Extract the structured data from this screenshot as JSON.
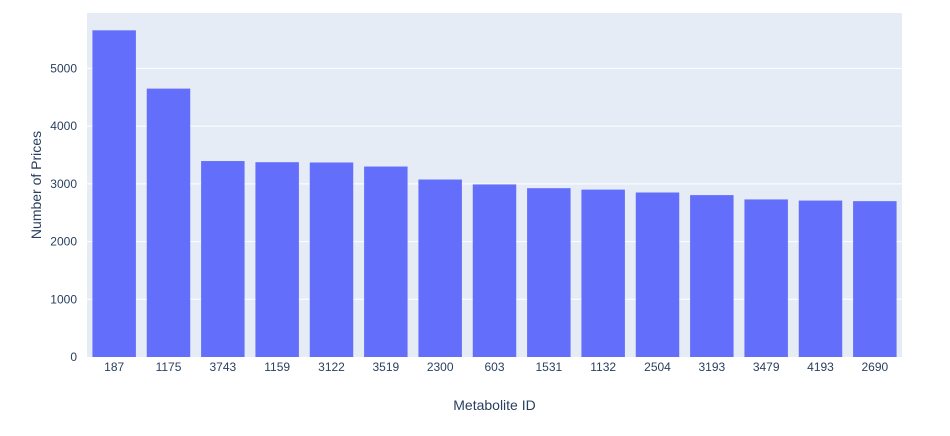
{
  "chart_data": {
    "type": "bar",
    "title": "",
    "xlabel": "Metabolite ID",
    "ylabel": "Number of Prices",
    "categories": [
      "187",
      "1175",
      "3743",
      "1159",
      "3122",
      "3519",
      "2300",
      "603",
      "1531",
      "1132",
      "2504",
      "3193",
      "3479",
      "4193",
      "2690"
    ],
    "values": [
      5660,
      4650,
      3395,
      3375,
      3370,
      3300,
      3075,
      2990,
      2925,
      2900,
      2850,
      2805,
      2730,
      2710,
      2700
    ],
    "ylim": [
      0,
      5960
    ],
    "yticks": [
      0,
      1000,
      2000,
      3000,
      4000,
      5000
    ],
    "grid": true,
    "legend": false,
    "colors": {
      "bar": "#636efa",
      "plot_background": "#e5ecf6",
      "grid": "#ffffff",
      "text": "#2a3f5f"
    }
  }
}
